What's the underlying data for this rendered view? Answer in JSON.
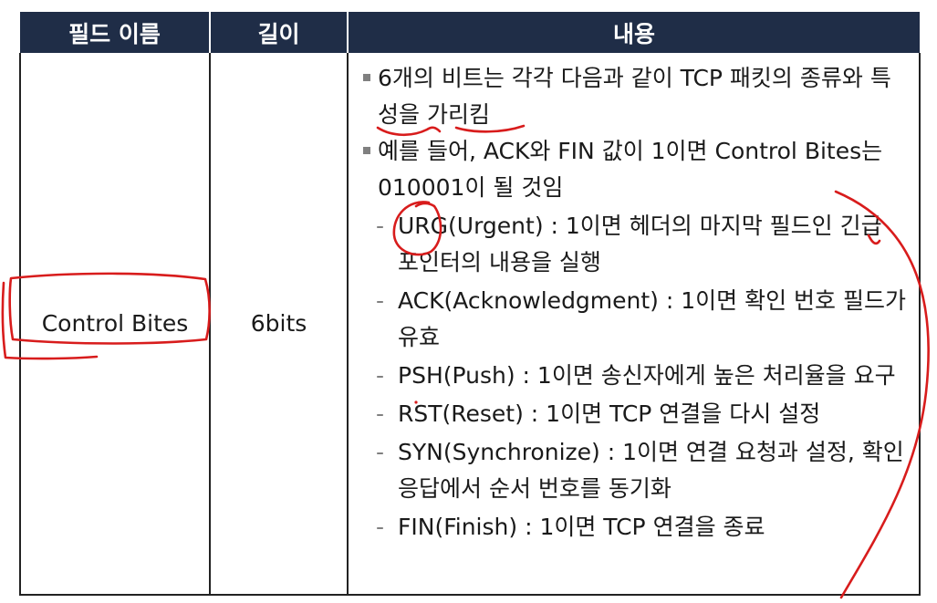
{
  "table": {
    "headers": [
      "필드 이름",
      "길이",
      "내용"
    ],
    "row": {
      "name": "Control Bites",
      "length": "6bits",
      "bullets": [
        "6개의 비트는 각각 다음과 같이 TCP 패킷의 종류와 특성을 가리킴",
        "예를 들어, ACK와 FIN 값이 1이면 Control Bites는 010001이 될 것임"
      ],
      "flags": [
        "URG(Urgent) : 1이면 헤더의 마지막 필드인 긴급 포인터의 내용을 실행",
        "ACK(Acknowledgment) : 1이면 확인 번호 필드가 유효",
        "PSH(Push) : 1이면 송신자에게 높은 처리율을 요구",
        "RST(Reset) : 1이면 TCP 연결을 다시 설정",
        "SYN(Synchronize) : 1이면 연결 요청과 설정, 확인 응답에서 순서 번호를 동기화",
        "FIN(Finish) : 1이면 TCP 연결을 종료"
      ]
    }
  },
  "colors": {
    "header_bg": "#1f2d47",
    "ink": "#d81c1c"
  }
}
